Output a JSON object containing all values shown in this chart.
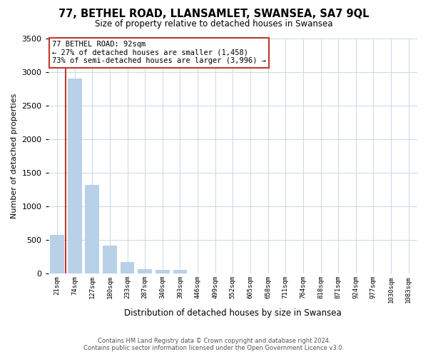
{
  "title": "77, BETHEL ROAD, LLANSAMLET, SWANSEA, SA7 9QL",
  "subtitle": "Size of property relative to detached houses in Swansea",
  "xlabel": "Distribution of detached houses by size in Swansea",
  "ylabel": "Number of detached properties",
  "bar_labels": [
    "21sqm",
    "74sqm",
    "127sqm",
    "180sqm",
    "233sqm",
    "287sqm",
    "340sqm",
    "393sqm",
    "446sqm",
    "499sqm",
    "552sqm",
    "605sqm",
    "658sqm",
    "711sqm",
    "764sqm",
    "818sqm",
    "871sqm",
    "924sqm",
    "977sqm",
    "1030sqm",
    "1083sqm"
  ],
  "bar_values": [
    580,
    2900,
    1320,
    420,
    175,
    70,
    55,
    55,
    0,
    0,
    0,
    0,
    0,
    0,
    0,
    0,
    0,
    0,
    0,
    0,
    0
  ],
  "bar_color": "#b8d0e8",
  "vline_color": "#c0392b",
  "annotation_title": "77 BETHEL ROAD: 92sqm",
  "annotation_line1": "← 27% of detached houses are smaller (1,458)",
  "annotation_line2": "73% of semi-detached houses are larger (3,996) →",
  "annotation_box_color": "#ffffff",
  "annotation_box_edge": "#c0392b",
  "ylim": [
    0,
    3500
  ],
  "yticks": [
    0,
    500,
    1000,
    1500,
    2000,
    2500,
    3000,
    3500
  ],
  "footer1": "Contains HM Land Registry data © Crown copyright and database right 2024.",
  "footer2": "Contains public sector information licensed under the Open Government Licence v3.0.",
  "bg_color": "#ffffff",
  "grid_color": "#c8d8e8"
}
